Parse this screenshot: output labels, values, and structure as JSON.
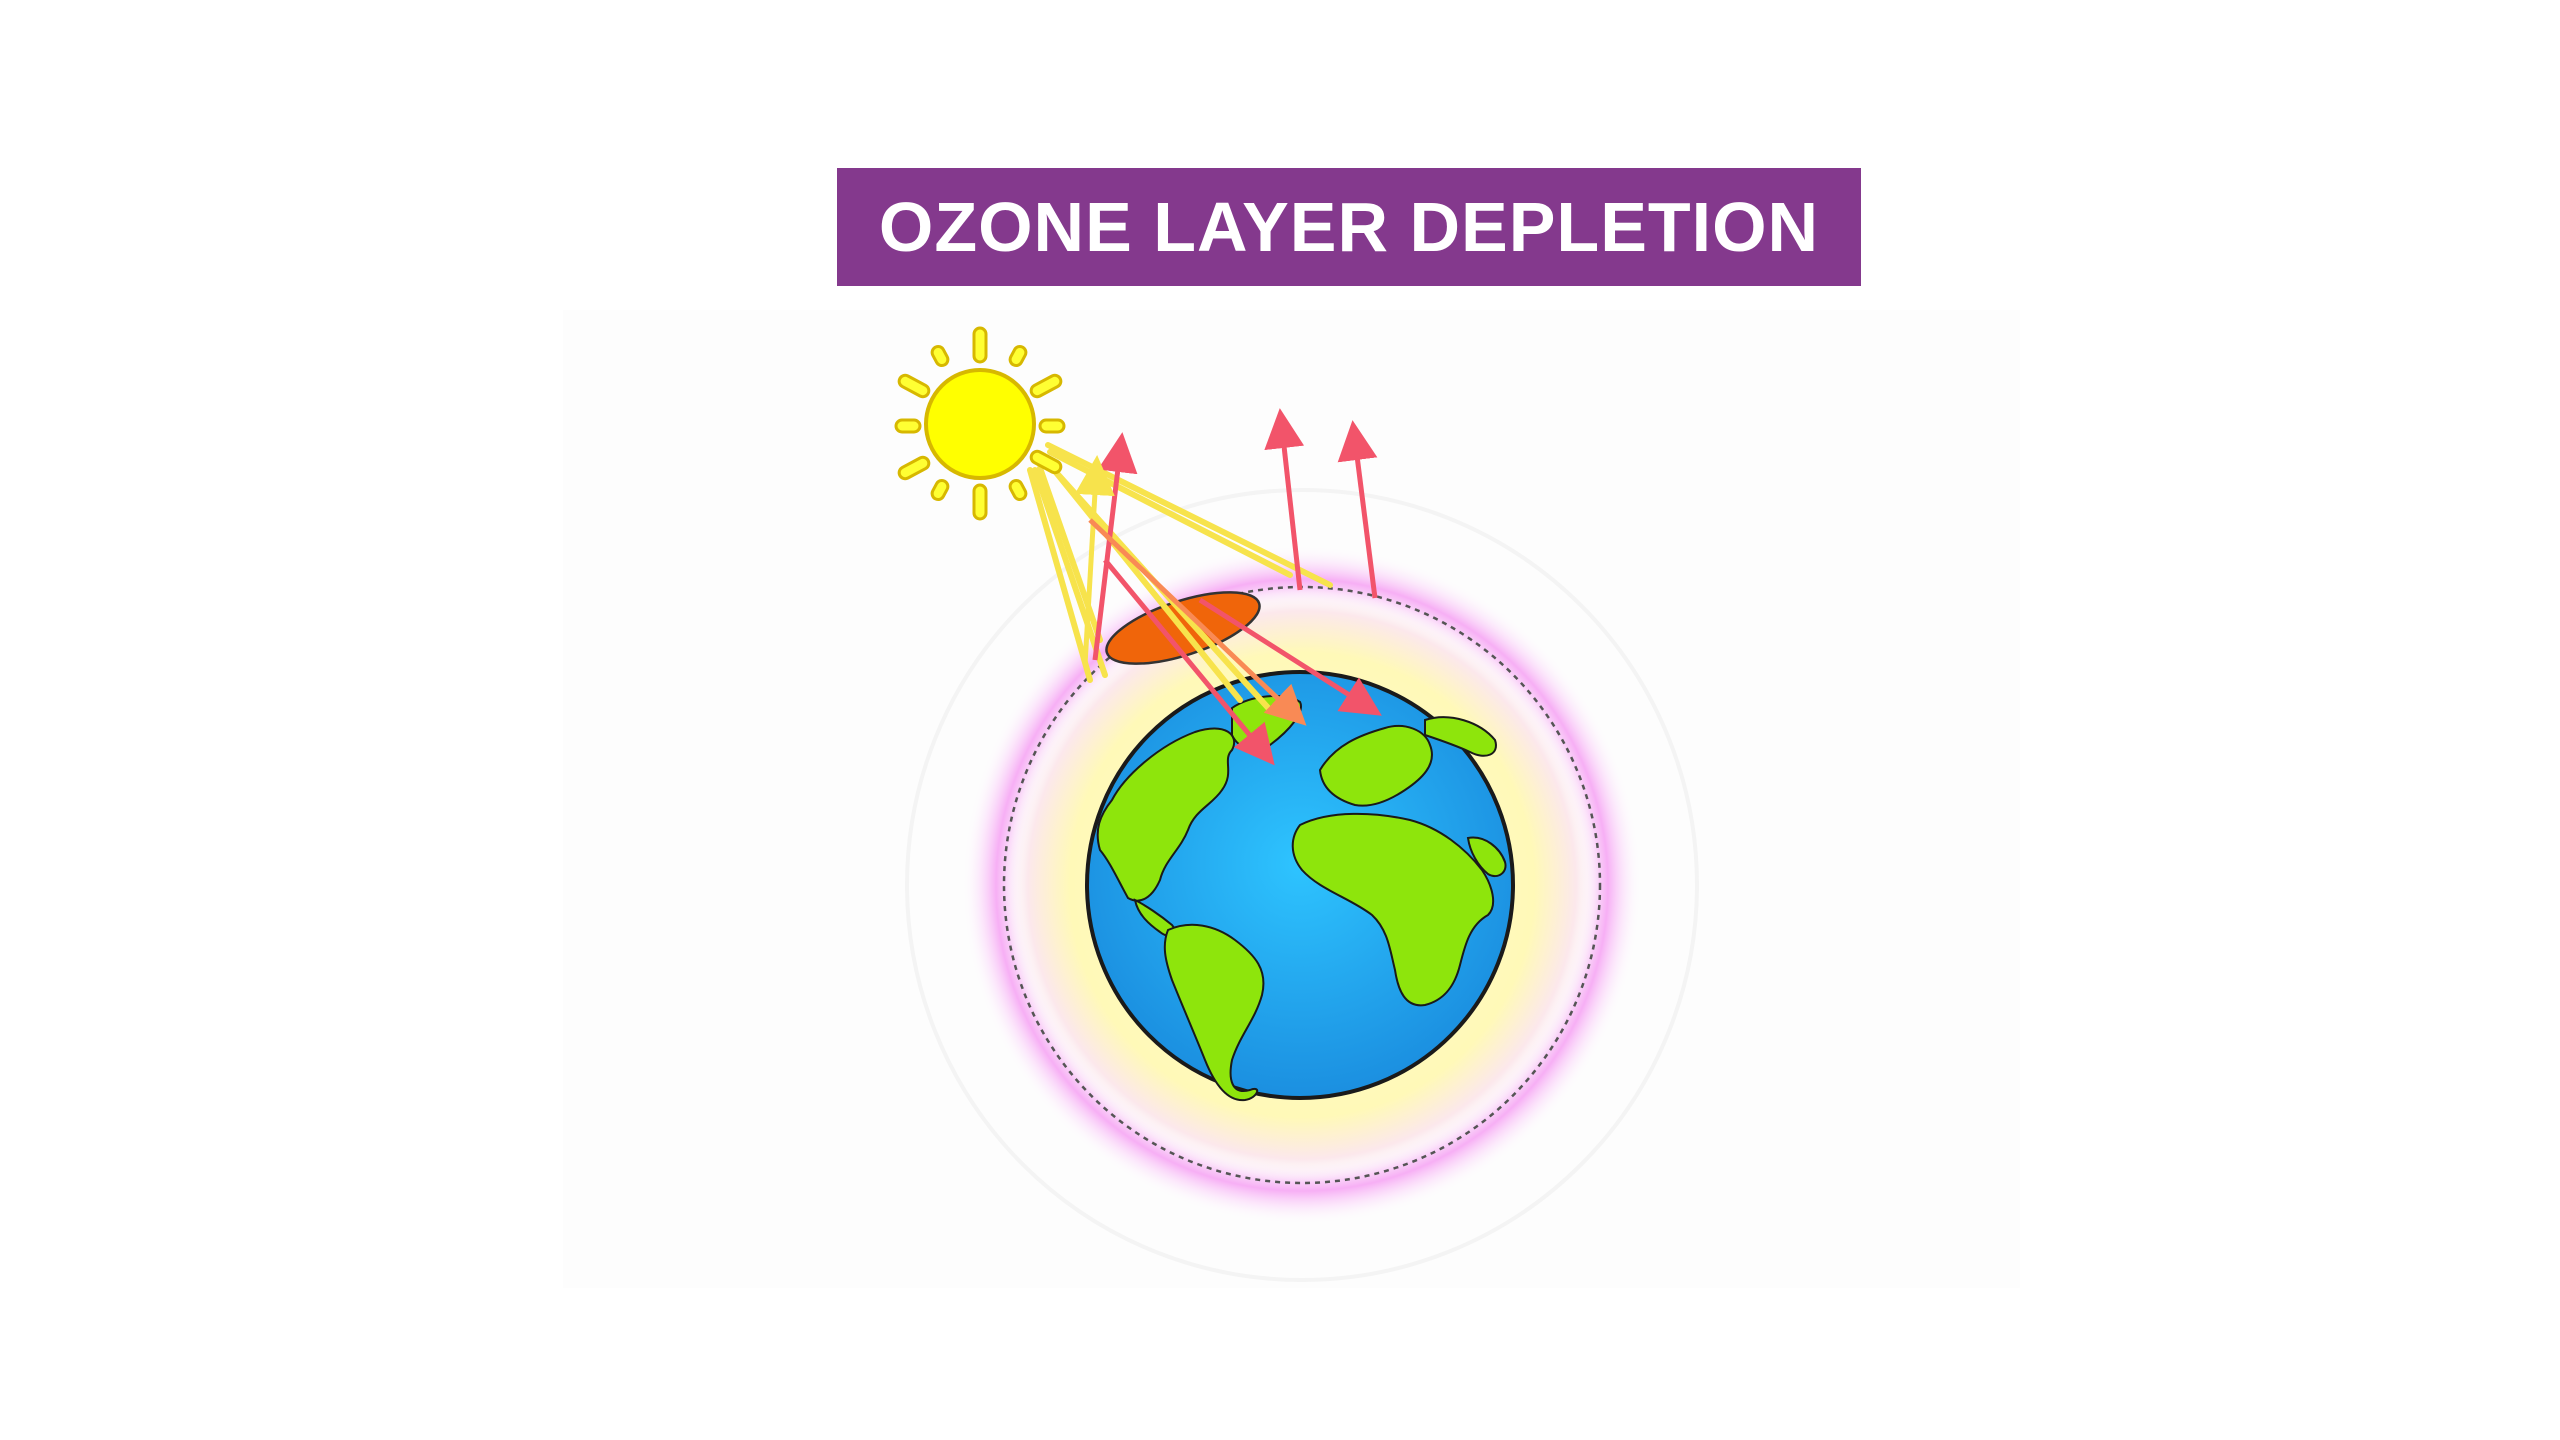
{
  "title": "OZONE LAYER DEPLETION",
  "colors": {
    "banner": "#84398d",
    "title_text": "#ffffff",
    "sun": "#ffff00",
    "sun_outline": "#d7b800",
    "sun_ray": "#f7e34c",
    "ozone_hole": "#f0650a",
    "uv_arrow": "#f2546a",
    "ozone_layer": "#fffcc4",
    "ozone_glow": "#f6a6f4",
    "ocean": "#2bb8f5",
    "land": "#8ee50c"
  },
  "icons": {
    "sun": "sun-icon",
    "earth": "earth-globe-icon",
    "ozone_hole": "ozone-hole-icon"
  }
}
